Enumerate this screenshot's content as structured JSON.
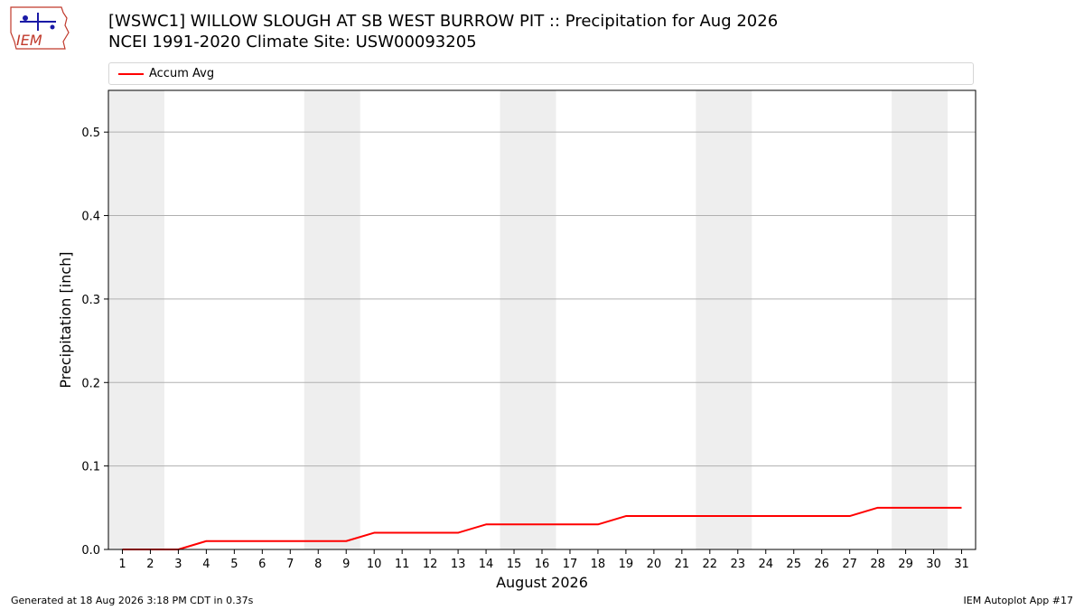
{
  "header": {
    "title_line1": "[WSWC1] WILLOW SLOUGH AT SB WEST BURROW PIT :: Precipitation for Aug 2026",
    "title_line2": "NCEI 1991-2020 Climate Site: USW00093205",
    "logo_text": "IEM"
  },
  "footer": {
    "generated": "Generated at 18 Aug 2026 3:18 PM CDT in 0.37s",
    "app": "IEM Autoplot App #17"
  },
  "colors": {
    "accum_avg_line": "#ff0000",
    "weekend_shade": "#eeeeee",
    "grid": "#b0b0b0"
  },
  "chart_data": {
    "type": "line",
    "title": "[WSWC1] WILLOW SLOUGH AT SB WEST BURROW PIT :: Precipitation for Aug 2026",
    "subtitle": "NCEI 1991-2020 Climate Site: USW00093205",
    "xlabel": "August 2026",
    "ylabel": "Precipitation [inch]",
    "xlim": [
      0.5,
      31.5
    ],
    "ylim": [
      0,
      0.55
    ],
    "yticks": [
      0.0,
      0.1,
      0.2,
      0.3,
      0.4,
      0.5
    ],
    "ytick_labels": [
      "0.0",
      "0.1",
      "0.2",
      "0.3",
      "0.4",
      "0.5"
    ],
    "x": [
      1,
      2,
      3,
      4,
      5,
      6,
      7,
      8,
      9,
      10,
      11,
      12,
      13,
      14,
      15,
      16,
      17,
      18,
      19,
      20,
      21,
      22,
      23,
      24,
      25,
      26,
      27,
      28,
      29,
      30,
      31
    ],
    "xtick_labels": [
      "1",
      "2",
      "3",
      "4",
      "5",
      "6",
      "7",
      "8",
      "9",
      "10",
      "11",
      "12",
      "13",
      "14",
      "15",
      "16",
      "17",
      "18",
      "19",
      "20",
      "21",
      "22",
      "23",
      "24",
      "25",
      "26",
      "27",
      "28",
      "29",
      "30",
      "31"
    ],
    "grid": "horizontal",
    "legend_position": "top",
    "weekend_shading": [
      [
        1,
        2
      ],
      [
        8,
        9
      ],
      [
        15,
        16
      ],
      [
        22,
        23
      ],
      [
        29,
        30
      ]
    ],
    "series": [
      {
        "name": "Accum Avg",
        "color": "#ff0000",
        "values": [
          0.0,
          0.0,
          0.0,
          0.01,
          0.01,
          0.01,
          0.01,
          0.01,
          0.01,
          0.02,
          0.02,
          0.02,
          0.02,
          0.03,
          0.03,
          0.03,
          0.03,
          0.03,
          0.04,
          0.04,
          0.04,
          0.04,
          0.04,
          0.04,
          0.04,
          0.04,
          0.04,
          0.05,
          0.05,
          0.05,
          0.05
        ]
      }
    ]
  }
}
